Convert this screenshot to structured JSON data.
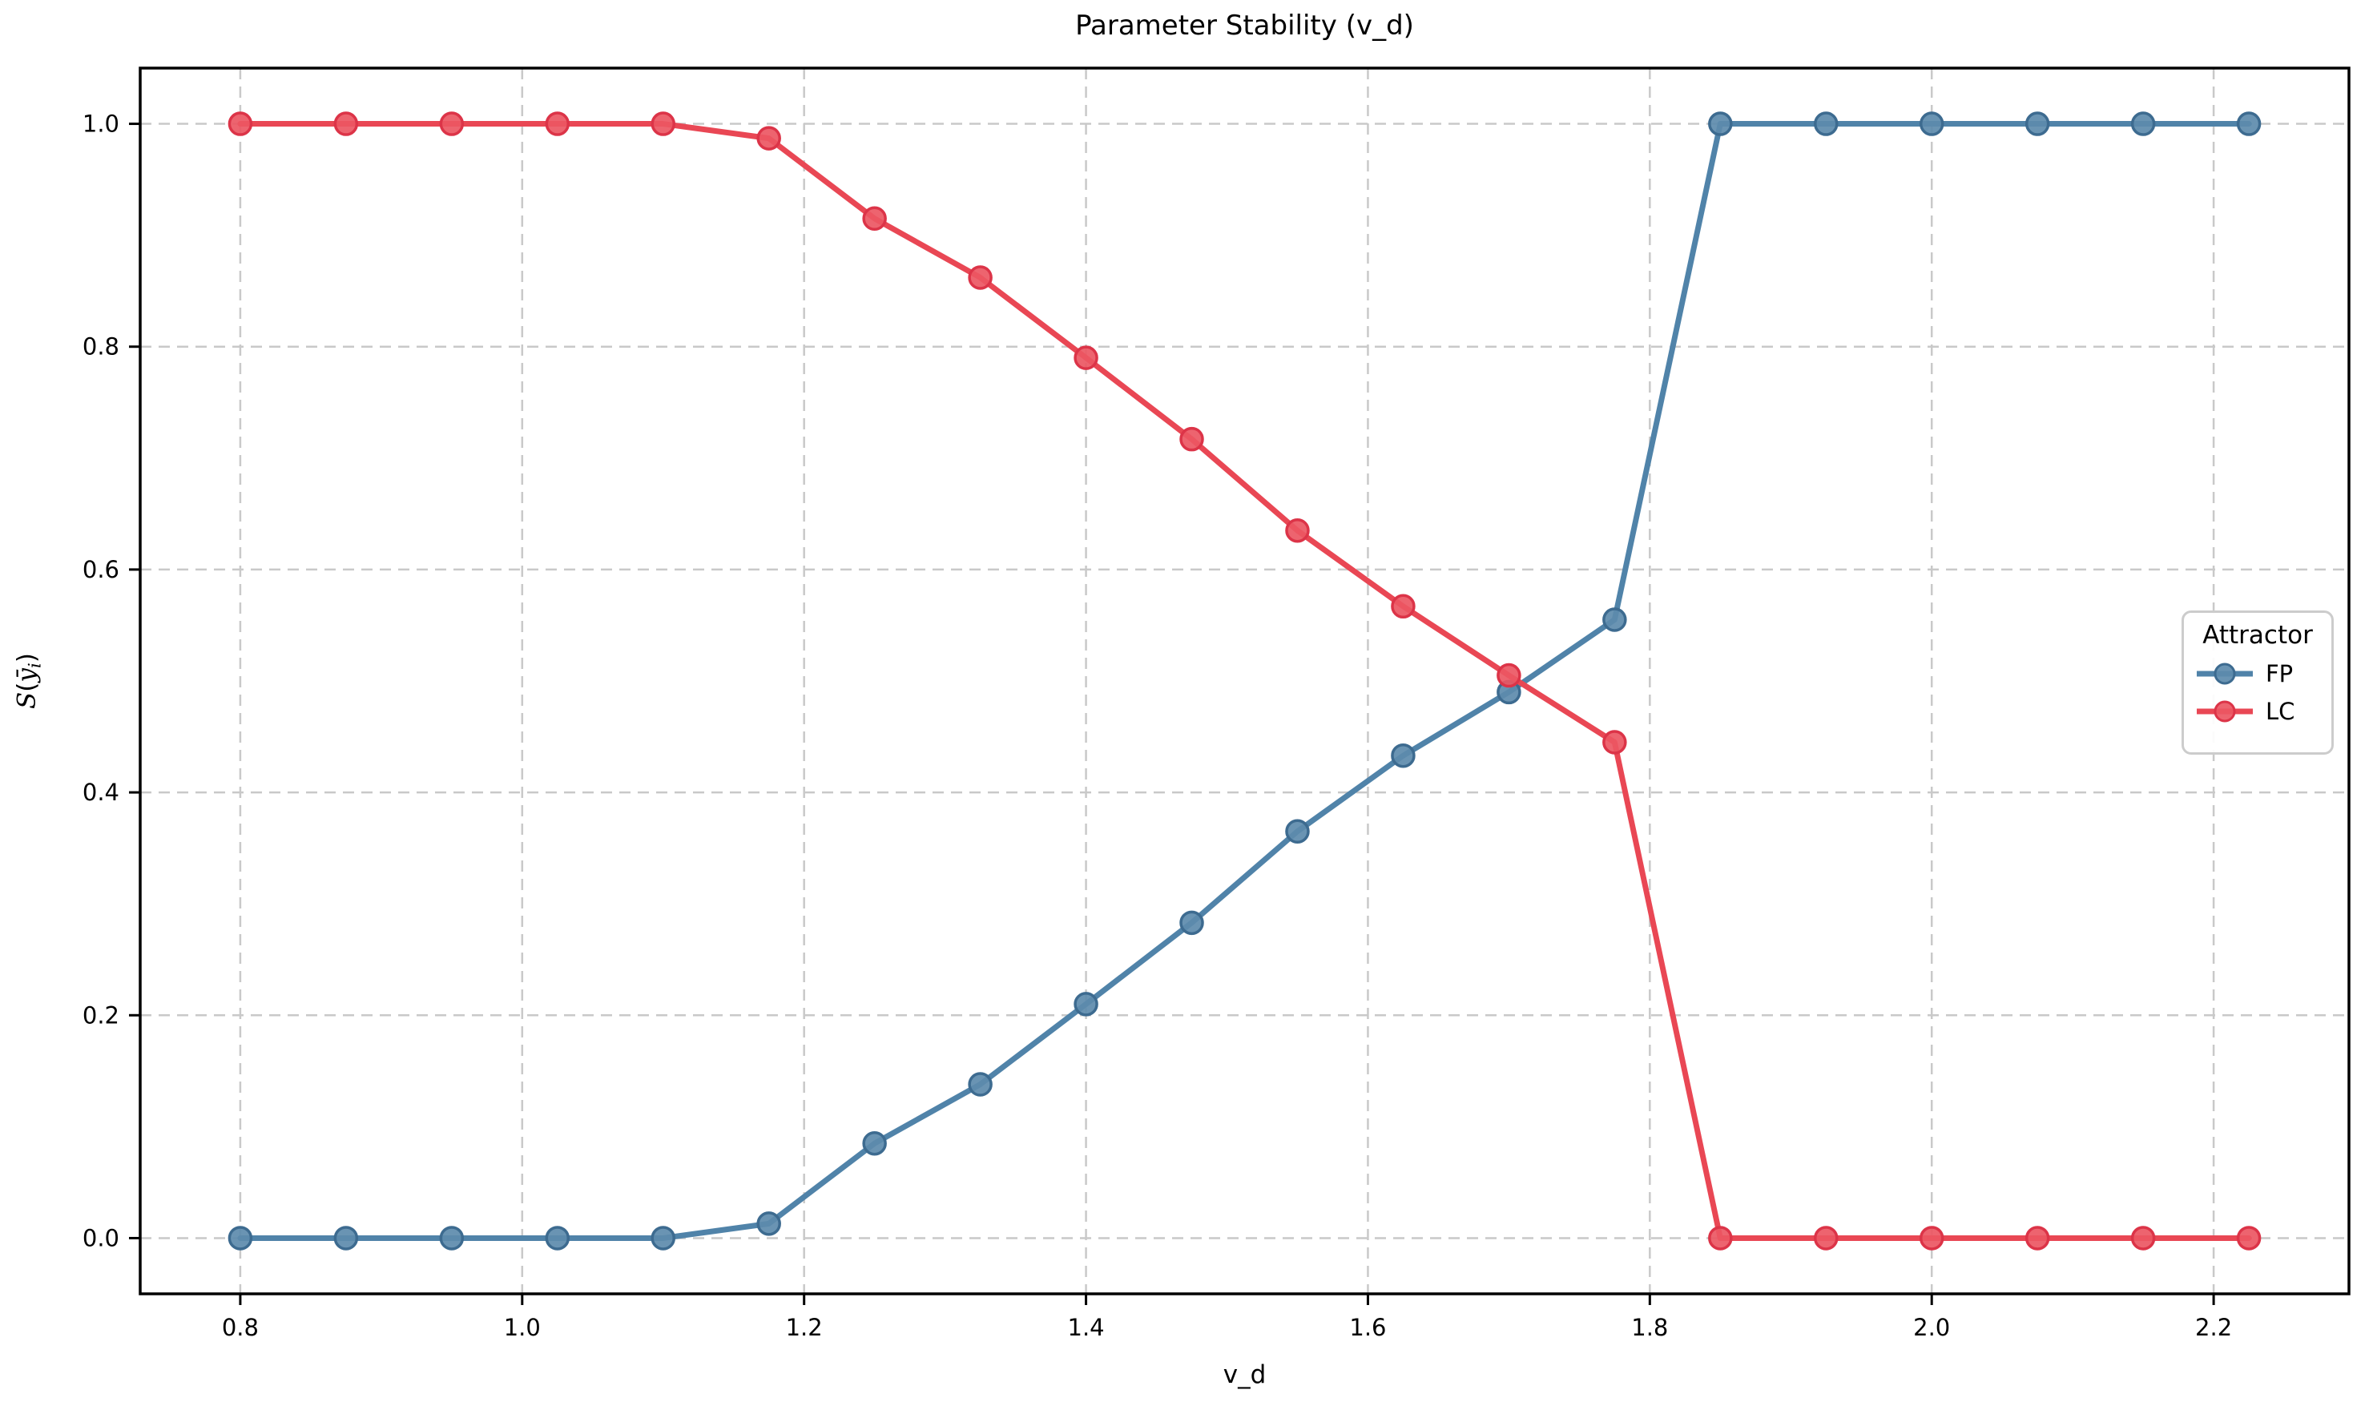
{
  "figure": {
    "background": "#ffffff",
    "ylabel_s": "S",
    "ylabel_open": "(",
    "ylabel_ybar": "ȳ",
    "ylabel_sub": "i",
    "ylabel_close": ")"
  },
  "chart_data": {
    "type": "line",
    "title": "Parameter Stability (v_d)",
    "xlabel": "v_d",
    "ylabel": "S(ȳ_i)",
    "grid": true,
    "grid_style": "dashed",
    "legend_title": "Attractor",
    "legend_position": "center-right",
    "xlim": [
      0.729,
      2.296
    ],
    "ylim": [
      -0.05,
      1.05
    ],
    "x_ticks": [
      0.8,
      1.0,
      1.2,
      1.4,
      1.6,
      1.8,
      2.0,
      2.2
    ],
    "x_tick_labels": [
      "0.8",
      "1.0",
      "1.2",
      "1.4",
      "1.6",
      "1.8",
      "2.0",
      "2.2"
    ],
    "y_ticks": [
      0.0,
      0.2,
      0.4,
      0.6,
      0.8,
      1.0
    ],
    "y_tick_labels": [
      "0.0",
      "0.2",
      "0.4",
      "0.6",
      "0.8",
      "1.0"
    ],
    "x": [
      0.8,
      0.875,
      0.95,
      1.025,
      1.1,
      1.175,
      1.25,
      1.325,
      1.4,
      1.475,
      1.55,
      1.625,
      1.7,
      1.775,
      1.85,
      1.925,
      2.0,
      2.075,
      2.15,
      2.225
    ],
    "series": [
      {
        "name": "FP",
        "color": "#5083a9",
        "marker_fill": "#5d8bac",
        "marker_edge": "#3d6b90",
        "values": [
          0.0,
          0.0,
          0.0,
          0.0,
          0.0,
          0.013,
          0.085,
          0.138,
          0.21,
          0.283,
          0.365,
          0.433,
          0.49,
          0.555,
          1.0,
          1.0,
          1.0,
          1.0,
          1.0,
          1.0
        ]
      },
      {
        "name": "LC",
        "color": "#e94754",
        "marker_fill": "#eb5763",
        "marker_edge": "#dc3448",
        "values": [
          1.0,
          1.0,
          1.0,
          1.0,
          1.0,
          0.987,
          0.915,
          0.862,
          0.79,
          0.717,
          0.635,
          0.567,
          0.505,
          0.445,
          0.0,
          0.0,
          0.0,
          0.0,
          0.0,
          0.0
        ]
      }
    ],
    "colors": {
      "grid": "#c9c9c9",
      "spine": "#000000",
      "text": "#000000",
      "legend_border": "#cccccc"
    }
  }
}
